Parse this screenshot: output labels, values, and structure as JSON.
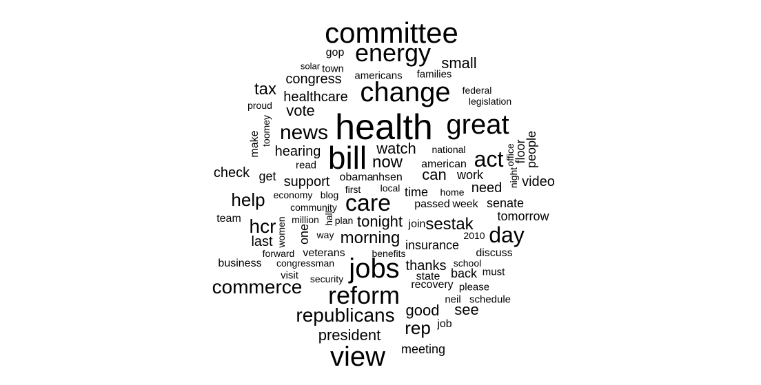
{
  "words": [
    {
      "text": "committee"
    },
    {
      "text": "energy"
    },
    {
      "text": "gop"
    },
    {
      "text": "small"
    },
    {
      "text": "solar"
    },
    {
      "text": "town"
    },
    {
      "text": "americans"
    },
    {
      "text": "families"
    },
    {
      "text": "congress"
    },
    {
      "text": "change"
    },
    {
      "text": "tax"
    },
    {
      "text": "federal"
    },
    {
      "text": "healthcare"
    },
    {
      "text": "legislation"
    },
    {
      "text": "proud"
    },
    {
      "text": "vote"
    },
    {
      "text": "health"
    },
    {
      "text": "great"
    },
    {
      "text": "toomey"
    },
    {
      "text": "news"
    },
    {
      "text": "make"
    },
    {
      "text": "people"
    },
    {
      "text": "bill"
    },
    {
      "text": "floor"
    },
    {
      "text": "watch"
    },
    {
      "text": "office"
    },
    {
      "text": "hearing"
    },
    {
      "text": "national"
    },
    {
      "text": "act"
    },
    {
      "text": "now"
    },
    {
      "text": "read"
    },
    {
      "text": "american"
    },
    {
      "text": "check"
    },
    {
      "text": "night"
    },
    {
      "text": "can"
    },
    {
      "text": "get"
    },
    {
      "text": "work"
    },
    {
      "text": "video"
    },
    {
      "text": "obama"
    },
    {
      "text": "nhsen"
    },
    {
      "text": "support"
    },
    {
      "text": "first"
    },
    {
      "text": "local"
    },
    {
      "text": "need"
    },
    {
      "text": "blog"
    },
    {
      "text": "time"
    },
    {
      "text": "home"
    },
    {
      "text": "economy"
    },
    {
      "text": "help"
    },
    {
      "text": "care"
    },
    {
      "text": "passed"
    },
    {
      "text": "week"
    },
    {
      "text": "senate"
    },
    {
      "text": "community"
    },
    {
      "text": "team"
    },
    {
      "text": "million"
    },
    {
      "text": "hall"
    },
    {
      "text": "plan"
    },
    {
      "text": "tonight"
    },
    {
      "text": "join"
    },
    {
      "text": "sestak"
    },
    {
      "text": "tomorrow"
    },
    {
      "text": "hcr"
    },
    {
      "text": "women"
    },
    {
      "text": "one"
    },
    {
      "text": "way"
    },
    {
      "text": "morning"
    },
    {
      "text": "2010"
    },
    {
      "text": "day"
    },
    {
      "text": "last"
    },
    {
      "text": "insurance"
    },
    {
      "text": "forward"
    },
    {
      "text": "veterans"
    },
    {
      "text": "benefits"
    },
    {
      "text": "discuss"
    },
    {
      "text": "business"
    },
    {
      "text": "congressman"
    },
    {
      "text": "school"
    },
    {
      "text": "jobs"
    },
    {
      "text": "thanks"
    },
    {
      "text": "must"
    },
    {
      "text": "visit"
    },
    {
      "text": "back"
    },
    {
      "text": "security"
    },
    {
      "text": "state"
    },
    {
      "text": "recovery"
    },
    {
      "text": "please"
    },
    {
      "text": "commerce"
    },
    {
      "text": "reform"
    },
    {
      "text": "neil"
    },
    {
      "text": "schedule"
    },
    {
      "text": "good"
    },
    {
      "text": "see"
    },
    {
      "text": "republicans"
    },
    {
      "text": "rep"
    },
    {
      "text": "job"
    },
    {
      "text": "president"
    },
    {
      "text": "meeting"
    },
    {
      "text": "view"
    }
  ]
}
